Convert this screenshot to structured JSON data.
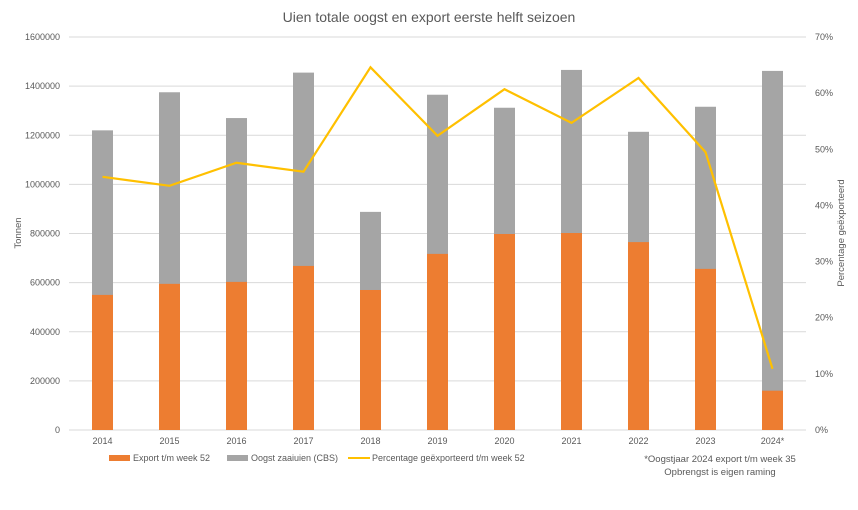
{
  "chart_data": {
    "type": "bar",
    "title": "Uien totale oogst en export eerste helft seizoen",
    "categories": [
      "2014",
      "2015",
      "2016",
      "2017",
      "2018",
      "2019",
      "2020",
      "2021",
      "2022",
      "2023",
      "2024*"
    ],
    "series": [
      {
        "name": "Oogst zaaiuien (CBS)",
        "type": "bar",
        "axis": "left",
        "color": "#a5a5a5",
        "values": [
          1220000,
          1375000,
          1270000,
          1455000,
          888000,
          1365000,
          1312000,
          1466000,
          1214000,
          1316000,
          1462000
        ]
      },
      {
        "name": "Export t/m week 52",
        "type": "bar",
        "axis": "left",
        "color": "#ed7d31",
        "values": [
          550000,
          595000,
          603000,
          668000,
          570000,
          717000,
          798000,
          802000,
          765000,
          656000,
          160000
        ]
      },
      {
        "name": "Percentage geëxporteerd t/m week 52",
        "type": "line",
        "axis": "right",
        "color": "#ffc000",
        "values": [
          45.1,
          43.5,
          47.6,
          46.0,
          64.6,
          52.4,
          60.7,
          54.7,
          62.7,
          49.5,
          10.9
        ]
      }
    ],
    "ylabel": "Tonnen",
    "ylim": [
      0,
      1600000
    ],
    "yticks": [
      "0",
      "200000",
      "400000",
      "600000",
      "800000",
      "1000000",
      "1200000",
      "1400000",
      "1600000"
    ],
    "y2label": "Percentage geëxporteerd",
    "y2lim": [
      0,
      70
    ],
    "y2ticks": [
      "0%",
      "10%",
      "20%",
      "30%",
      "40%",
      "50%",
      "60%",
      "70%"
    ],
    "grid": true,
    "legend": {
      "placement": "bottom",
      "entries": [
        "Export t/m week 52",
        "Oogst zaaiuien (CBS)",
        "Percentage geëxporteerd t/m week 52"
      ]
    },
    "annotations": [
      "*Oogstjaar 2024 export t/m week 35",
      "Opbrengst is eigen raming"
    ]
  }
}
